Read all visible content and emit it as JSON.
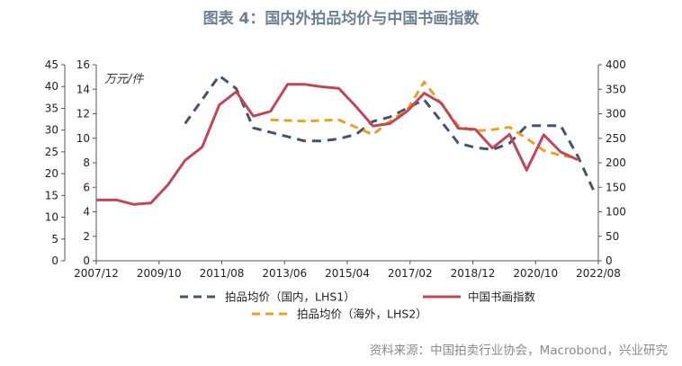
{
  "title": "图表 4：国内外拍品均价与中国书画指数",
  "source": "资料来源：中国拍卖行业协会，Macrobond，兴业研究",
  "chart_data": {
    "type": "line",
    "unit_label": "万元/件",
    "x_categories": [
      "2007/12",
      "2009/10",
      "2011/08",
      "2013/06",
      "2015/04",
      "2017/02",
      "2018/12",
      "2020/10",
      "2022/08"
    ],
    "x_range": [
      2007.9,
      2022.6
    ],
    "lhs1": {
      "ticks": [
        "0",
        "5",
        "10",
        "15",
        "20",
        "25",
        "30",
        "35",
        "40",
        "45"
      ],
      "range": [
        0,
        45
      ]
    },
    "lhs2": {
      "ticks": [
        "0",
        "2",
        "4",
        "6",
        "8",
        "10",
        "12",
        "14",
        "16"
      ],
      "range": [
        0,
        16
      ]
    },
    "rhs": {
      "ticks": [
        "0",
        "50",
        "100",
        "150",
        "200",
        "250",
        "300",
        "350",
        "400"
      ],
      "range": [
        0,
        400
      ]
    },
    "series": [
      {
        "name": "拍品均价（国内，LHS1）",
        "axis": "lhs1",
        "color": "#44546a",
        "dash": "10,7",
        "points": [
          [
            2010.5,
            31.5
          ],
          [
            2011.0,
            37
          ],
          [
            2011.5,
            42.5
          ],
          [
            2012.0,
            39.5
          ],
          [
            2012.5,
            30.5
          ],
          [
            2013.0,
            29.5
          ],
          [
            2013.5,
            28.5
          ],
          [
            2014.0,
            27.5
          ],
          [
            2014.5,
            27.5
          ],
          [
            2015.0,
            28
          ],
          [
            2015.5,
            29
          ],
          [
            2016.0,
            32
          ],
          [
            2016.5,
            33
          ],
          [
            2017.0,
            35
          ],
          [
            2017.5,
            37
          ],
          [
            2018.0,
            32
          ],
          [
            2018.5,
            27
          ],
          [
            2019.0,
            26
          ],
          [
            2019.5,
            25.5
          ],
          [
            2020.0,
            27
          ],
          [
            2020.5,
            31
          ],
          [
            2021.0,
            31
          ],
          [
            2021.5,
            31
          ],
          [
            2022.0,
            24
          ],
          [
            2022.5,
            15.5
          ]
        ]
      },
      {
        "name": "拍品均价（海外，LHS2）",
        "axis": "lhs2",
        "color": "#e8a22a",
        "dash": "9,6",
        "points": [
          [
            2013.0,
            11.5
          ],
          [
            2014.0,
            11.4
          ],
          [
            2015.0,
            11.5
          ],
          [
            2016.0,
            10.3
          ],
          [
            2016.5,
            11.4
          ],
          [
            2017.0,
            12.3
          ],
          [
            2017.5,
            14.6
          ],
          [
            2018.0,
            12.8
          ],
          [
            2018.5,
            11.0
          ],
          [
            2019.0,
            10.6
          ],
          [
            2019.5,
            10.7
          ],
          [
            2020.0,
            10.9
          ],
          [
            2020.5,
            10.0
          ],
          [
            2021.0,
            9.0
          ],
          [
            2021.5,
            8.6
          ],
          [
            2022.0,
            8.4
          ]
        ]
      },
      {
        "name": "中国书画指数",
        "axis": "rhs",
        "color": "#c0475a",
        "dash": "",
        "points": [
          [
            2007.9,
            124
          ],
          [
            2008.5,
            124
          ],
          [
            2009.0,
            115
          ],
          [
            2009.5,
            118
          ],
          [
            2010.0,
            155
          ],
          [
            2010.5,
            205
          ],
          [
            2011.0,
            232
          ],
          [
            2011.5,
            318
          ],
          [
            2012.0,
            345
          ],
          [
            2012.5,
            295
          ],
          [
            2013.0,
            305
          ],
          [
            2013.5,
            360
          ],
          [
            2014.0,
            360
          ],
          [
            2014.5,
            355
          ],
          [
            2015.0,
            352
          ],
          [
            2015.5,
            315
          ],
          [
            2016.0,
            275
          ],
          [
            2016.5,
            280
          ],
          [
            2017.0,
            305
          ],
          [
            2017.5,
            342
          ],
          [
            2018.0,
            322
          ],
          [
            2018.5,
            270
          ],
          [
            2019.0,
            268
          ],
          [
            2019.5,
            230
          ],
          [
            2020.0,
            258
          ],
          [
            2020.5,
            185
          ],
          [
            2021.0,
            257
          ],
          [
            2021.5,
            222
          ],
          [
            2022.0,
            206
          ]
        ]
      }
    ],
    "legend": [
      {
        "label": "拍品均价（国内，LHS1）",
        "style": "dashed",
        "color": "#44546a"
      },
      {
        "label": "中国书画指数",
        "style": "solid",
        "color": "#c0475a"
      },
      {
        "label": "拍品均价（海外，LHS2）",
        "style": "dashed",
        "color": "#e8a22a"
      }
    ],
    "legend_position": "bottom",
    "grid": false
  }
}
